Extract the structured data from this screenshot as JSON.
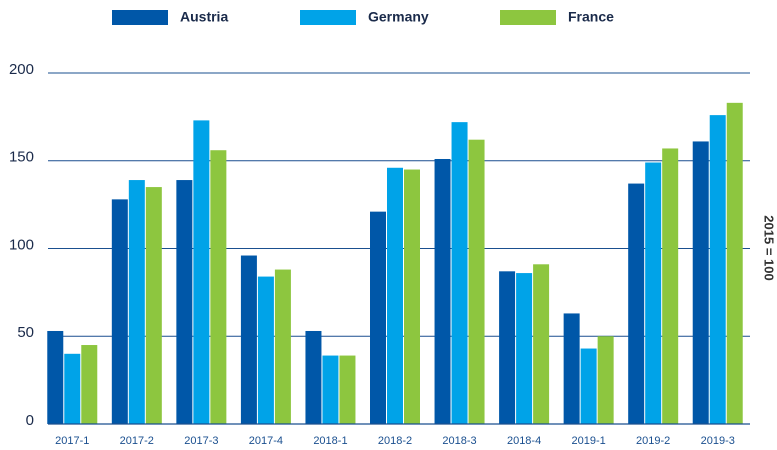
{
  "chart_data": {
    "type": "bar",
    "y_axis_label": "2015 = 100",
    "categories": [
      "2017-1",
      "2017-2",
      "2017-3",
      "2017-4",
      "2018-1",
      "2018-2",
      "2018-3",
      "2018-4",
      "2019-1",
      "2019-2",
      "2019-3"
    ],
    "series": [
      {
        "name": "Austria",
        "color": "#0057a8",
        "values": [
          53,
          128,
          139,
          96,
          53,
          121,
          151,
          87,
          63,
          137,
          161
        ]
      },
      {
        "name": "Germany",
        "color": "#00a3e8",
        "values": [
          40,
          139,
          173,
          84,
          39,
          146,
          172,
          86,
          43,
          149,
          176
        ]
      },
      {
        "name": "France",
        "color": "#8dc63f",
        "values": [
          45,
          135,
          156,
          88,
          39,
          145,
          162,
          91,
          50,
          157,
          183
        ]
      }
    ],
    "ylim": [
      0,
      200
    ],
    "yticks": [
      0,
      50,
      100,
      150,
      200
    ],
    "grid": true,
    "legend": "top"
  }
}
